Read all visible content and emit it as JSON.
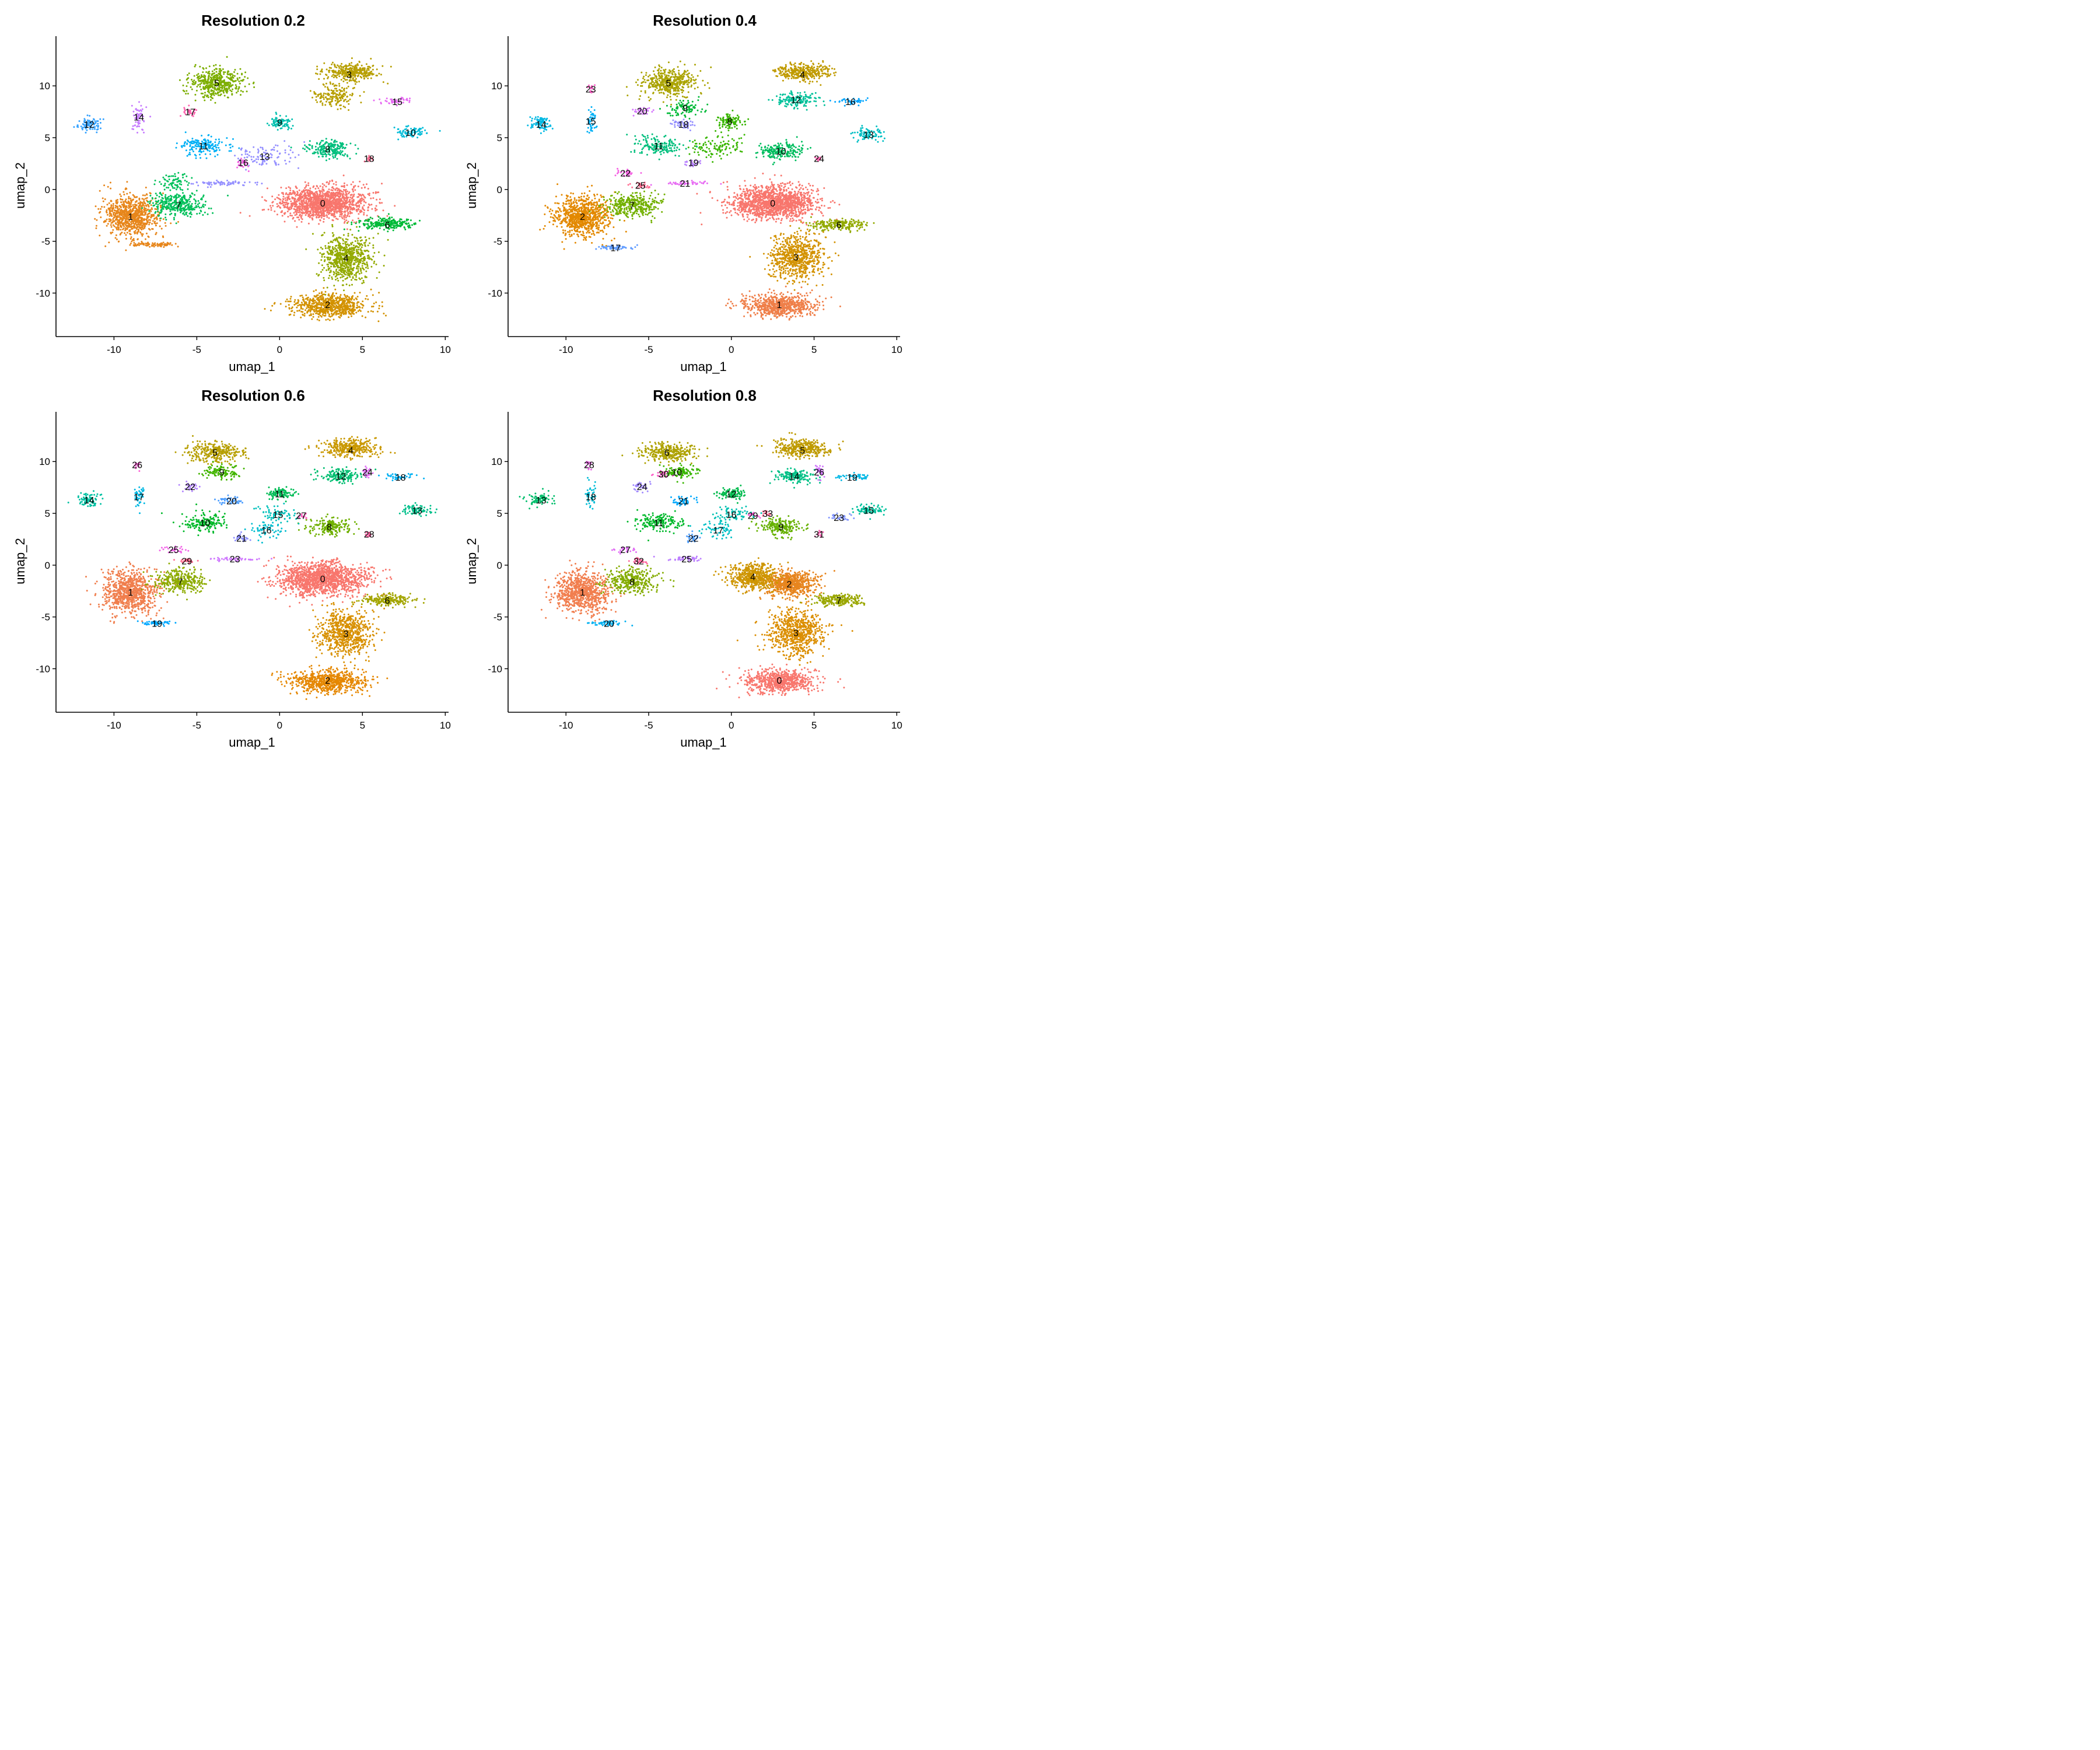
{
  "chart_data": [
    {
      "type": "scatter",
      "title": "Resolution 0.2",
      "xlabel": "umap_1",
      "ylabel": "umap_2",
      "xlim": [
        -13.5,
        10.2
      ],
      "ylim": [
        -14.2,
        14.8
      ],
      "xticks": [
        -10,
        -5,
        0,
        5,
        10
      ],
      "yticks": [
        -10,
        -5,
        0,
        5,
        10
      ],
      "grid": false,
      "legend": "none",
      "clusters": [
        {
          "label": "0",
          "x": 2.6,
          "y": -1.3,
          "color": "#F8766D"
        },
        {
          "label": "1",
          "x": -9.0,
          "y": -2.6,
          "color": "#E7861B"
        },
        {
          "label": "2",
          "x": 2.9,
          "y": -11.1,
          "color": "#D39200"
        },
        {
          "label": "3",
          "x": 4.2,
          "y": 11.1,
          "color": "#B79F00"
        },
        {
          "label": "4",
          "x": 4.0,
          "y": -6.6,
          "color": "#93AA00"
        },
        {
          "label": "5",
          "x": -3.8,
          "y": 10.3,
          "color": "#7CAE00"
        },
        {
          "label": "6",
          "x": 6.5,
          "y": -3.4,
          "color": "#00BA38"
        },
        {
          "label": "7",
          "x": -6.1,
          "y": -1.5,
          "color": "#00C05A"
        },
        {
          "label": "8",
          "x": 2.9,
          "y": 3.9,
          "color": "#00BF7D"
        },
        {
          "label": "9",
          "x": 0.0,
          "y": 6.5,
          "color": "#00C0AF"
        },
        {
          "label": "10",
          "x": 7.9,
          "y": 5.5,
          "color": "#00BCD8"
        },
        {
          "label": "11",
          "x": -4.6,
          "y": 4.2,
          "color": "#00B0F6"
        },
        {
          "label": "12",
          "x": -11.5,
          "y": 6.3,
          "color": "#35A2FF"
        },
        {
          "label": "13",
          "x": -0.9,
          "y": 3.2,
          "color": "#9590FF"
        },
        {
          "label": "14",
          "x": -8.5,
          "y": 7.0,
          "color": "#C77CFF"
        },
        {
          "label": "15",
          "x": 7.1,
          "y": 8.5,
          "color": "#E76BF3"
        },
        {
          "label": "16",
          "x": -2.2,
          "y": 2.6,
          "color": "#F564E3"
        },
        {
          "label": "17",
          "x": -5.4,
          "y": 7.5,
          "color": "#FF64B0"
        },
        {
          "label": "18",
          "x": 5.4,
          "y": 3.0,
          "color": "#FF6C91"
        }
      ]
    },
    {
      "type": "scatter",
      "title": "Resolution 0.4",
      "xlabel": "umap_1",
      "ylabel": "umap_2",
      "xlim": [
        -13.5,
        10.2
      ],
      "ylim": [
        -14.2,
        14.8
      ],
      "xticks": [
        -10,
        -5,
        0,
        5,
        10
      ],
      "yticks": [
        -10,
        -5,
        0,
        5,
        10
      ],
      "grid": false,
      "legend": "none",
      "clusters": [
        {
          "label": "0",
          "x": 2.5,
          "y": -1.3,
          "color": "#F8766D"
        },
        {
          "label": "1",
          "x": 2.9,
          "y": -11.1,
          "color": "#EF7F49"
        },
        {
          "label": "2",
          "x": -9.0,
          "y": -2.6,
          "color": "#E38900"
        },
        {
          "label": "3",
          "x": 3.9,
          "y": -6.5,
          "color": "#D39200"
        },
        {
          "label": "4",
          "x": 4.3,
          "y": 11.1,
          "color": "#C09B00"
        },
        {
          "label": "5",
          "x": -3.8,
          "y": 10.3,
          "color": "#AAA300"
        },
        {
          "label": "6",
          "x": 6.5,
          "y": -3.4,
          "color": "#93AA00"
        },
        {
          "label": "7",
          "x": -6.0,
          "y": -1.5,
          "color": "#72B000"
        },
        {
          "label": "8",
          "x": -0.1,
          "y": 6.6,
          "color": "#39B600"
        },
        {
          "label": "9",
          "x": -2.8,
          "y": 7.9,
          "color": "#00BA38"
        },
        {
          "label": "10",
          "x": 3.0,
          "y": 3.7,
          "color": "#00BD5F"
        },
        {
          "label": "11",
          "x": -4.4,
          "y": 4.2,
          "color": "#00BF7D"
        },
        {
          "label": "12",
          "x": 3.9,
          "y": 8.7,
          "color": "#00C19A"
        },
        {
          "label": "13",
          "x": 8.3,
          "y": 5.3,
          "color": "#00BFC4"
        },
        {
          "label": "14",
          "x": -11.5,
          "y": 6.3,
          "color": "#00B9E3"
        },
        {
          "label": "15",
          "x": -8.5,
          "y": 6.6,
          "color": "#00B0F6"
        },
        {
          "label": "16",
          "x": 7.2,
          "y": 8.5,
          "color": "#00A5FF"
        },
        {
          "label": "17",
          "x": -7.0,
          "y": -5.6,
          "color": "#619CFF"
        },
        {
          "label": "18",
          "x": -2.9,
          "y": 6.3,
          "color": "#9590FF"
        },
        {
          "label": "19",
          "x": -2.3,
          "y": 2.6,
          "color": "#B983FF"
        },
        {
          "label": "20",
          "x": -5.4,
          "y": 7.6,
          "color": "#D575FE"
        },
        {
          "label": "21",
          "x": -2.8,
          "y": 0.6,
          "color": "#E76BF3"
        },
        {
          "label": "22",
          "x": -6.4,
          "y": 1.6,
          "color": "#F564E3"
        },
        {
          "label": "23",
          "x": -8.5,
          "y": 9.7,
          "color": "#FF61C9"
        },
        {
          "label": "24",
          "x": 5.3,
          "y": 3.0,
          "color": "#FF64B0"
        },
        {
          "label": "25",
          "x": -5.5,
          "y": 0.4,
          "color": "#FF6C91"
        }
      ]
    },
    {
      "type": "scatter",
      "title": "Resolution 0.6",
      "xlabel": "umap_1",
      "ylabel": "umap_2",
      "xlim": [
        -13.5,
        10.2
      ],
      "ylim": [
        -14.2,
        14.8
      ],
      "xticks": [
        -10,
        -5,
        0,
        5,
        10
      ],
      "yticks": [
        -10,
        -5,
        0,
        5,
        10
      ],
      "grid": false,
      "legend": "none",
      "clusters": [
        {
          "label": "0",
          "x": 2.6,
          "y": -1.3,
          "color": "#F8766D"
        },
        {
          "label": "1",
          "x": -9.0,
          "y": -2.6,
          "color": "#F07E4D"
        },
        {
          "label": "2",
          "x": 2.9,
          "y": -11.1,
          "color": "#E58700"
        },
        {
          "label": "3",
          "x": 4.0,
          "y": -6.6,
          "color": "#D89000"
        },
        {
          "label": "4",
          "x": 4.3,
          "y": 11.1,
          "color": "#C99800"
        },
        {
          "label": "5",
          "x": -3.9,
          "y": 10.9,
          "color": "#B79F00"
        },
        {
          "label": "6",
          "x": 6.5,
          "y": -3.4,
          "color": "#A3A500"
        },
        {
          "label": "7",
          "x": -6.0,
          "y": -1.6,
          "color": "#8DAB00"
        },
        {
          "label": "8",
          "x": 3.0,
          "y": 3.7,
          "color": "#6FB000"
        },
        {
          "label": "9",
          "x": -3.5,
          "y": 9.0,
          "color": "#43B500"
        },
        {
          "label": "10",
          "x": -4.5,
          "y": 4.1,
          "color": "#00B92A"
        },
        {
          "label": "11",
          "x": 0.0,
          "y": 6.9,
          "color": "#00BC56"
        },
        {
          "label": "12",
          "x": 3.7,
          "y": 8.6,
          "color": "#00BE71"
        },
        {
          "label": "13",
          "x": 8.3,
          "y": 5.3,
          "color": "#00C08B"
        },
        {
          "label": "14",
          "x": -11.5,
          "y": 6.3,
          "color": "#00C1A3"
        },
        {
          "label": "15",
          "x": -0.1,
          "y": 4.9,
          "color": "#00C0BB"
        },
        {
          "label": "16",
          "x": -0.8,
          "y": 3.4,
          "color": "#00BDD0"
        },
        {
          "label": "17",
          "x": -8.5,
          "y": 6.6,
          "color": "#00B8E3"
        },
        {
          "label": "18",
          "x": 7.3,
          "y": 8.5,
          "color": "#00B1F3"
        },
        {
          "label": "19",
          "x": -7.4,
          "y": -5.6,
          "color": "#00A8FF"
        },
        {
          "label": "20",
          "x": -2.9,
          "y": 6.2,
          "color": "#4D9EFF"
        },
        {
          "label": "21",
          "x": -2.3,
          "y": 2.6,
          "color": "#8F91FF"
        },
        {
          "label": "22",
          "x": -5.4,
          "y": 7.6,
          "color": "#B385FF"
        },
        {
          "label": "23",
          "x": -2.7,
          "y": 0.6,
          "color": "#CF78FF"
        },
        {
          "label": "24",
          "x": 5.3,
          "y": 9.0,
          "color": "#E36EF6"
        },
        {
          "label": "25",
          "x": -6.4,
          "y": 1.5,
          "color": "#F266E8"
        },
        {
          "label": "26",
          "x": -8.6,
          "y": 9.7,
          "color": "#FC61D5"
        },
        {
          "label": "27",
          "x": 1.3,
          "y": 4.8,
          "color": "#FF62BF"
        },
        {
          "label": "28",
          "x": 5.4,
          "y": 3.0,
          "color": "#FF67A6"
        },
        {
          "label": "29",
          "x": -5.6,
          "y": 0.4,
          "color": "#FF6C91"
        }
      ]
    },
    {
      "type": "scatter",
      "title": "Resolution 0.8",
      "xlabel": "umap_1",
      "ylabel": "umap_2",
      "xlim": [
        -13.5,
        10.2
      ],
      "ylim": [
        -14.2,
        14.8
      ],
      "xticks": [
        -10,
        -5,
        0,
        5,
        10
      ],
      "yticks": [
        -10,
        -5,
        0,
        5,
        10
      ],
      "grid": false,
      "legend": "none",
      "clusters": [
        {
          "label": "0",
          "x": 2.9,
          "y": -11.1,
          "color": "#F8766D"
        },
        {
          "label": "1",
          "x": -9.0,
          "y": -2.6,
          "color": "#F17E4E"
        },
        {
          "label": "2",
          "x": 3.5,
          "y": -1.8,
          "color": "#E7851E"
        },
        {
          "label": "3",
          "x": 3.9,
          "y": -6.5,
          "color": "#DB8E00"
        },
        {
          "label": "4",
          "x": 1.3,
          "y": -1.1,
          "color": "#CE9500"
        },
        {
          "label": "5",
          "x": 4.3,
          "y": 11.1,
          "color": "#BF9B00"
        },
        {
          "label": "6",
          "x": -3.9,
          "y": 10.9,
          "color": "#AEA200"
        },
        {
          "label": "7",
          "x": 6.5,
          "y": -3.4,
          "color": "#9AA700"
        },
        {
          "label": "8",
          "x": -6.0,
          "y": -1.6,
          "color": "#84AC00"
        },
        {
          "label": "9",
          "x": 3.0,
          "y": 3.7,
          "color": "#66B100"
        },
        {
          "label": "10",
          "x": -3.3,
          "y": 9.0,
          "color": "#39B600"
        },
        {
          "label": "11",
          "x": -4.4,
          "y": 4.1,
          "color": "#00B92B"
        },
        {
          "label": "12",
          "x": 0.0,
          "y": 6.9,
          "color": "#00BB4E"
        },
        {
          "label": "13",
          "x": -11.5,
          "y": 6.3,
          "color": "#00BE6C"
        },
        {
          "label": "14",
          "x": 3.8,
          "y": 8.6,
          "color": "#00C086"
        },
        {
          "label": "15",
          "x": 8.3,
          "y": 5.3,
          "color": "#00C19D"
        },
        {
          "label": "16",
          "x": 0.0,
          "y": 4.9,
          "color": "#00C1B2"
        },
        {
          "label": "17",
          "x": -0.8,
          "y": 3.4,
          "color": "#00BFC5"
        },
        {
          "label": "18",
          "x": -8.5,
          "y": 6.6,
          "color": "#00BCD6"
        },
        {
          "label": "19",
          "x": 7.3,
          "y": 8.5,
          "color": "#00B7E5"
        },
        {
          "label": "20",
          "x": -7.4,
          "y": -5.6,
          "color": "#00B0F1"
        },
        {
          "label": "21",
          "x": -2.9,
          "y": 6.2,
          "color": "#00A8FC"
        },
        {
          "label": "22",
          "x": -2.3,
          "y": 2.6,
          "color": "#509FFF"
        },
        {
          "label": "23",
          "x": 6.5,
          "y": 4.6,
          "color": "#8195FF"
        },
        {
          "label": "24",
          "x": -5.4,
          "y": 7.6,
          "color": "#A28AFF"
        },
        {
          "label": "25",
          "x": -2.7,
          "y": 0.6,
          "color": "#BC7FFF"
        },
        {
          "label": "26",
          "x": 5.3,
          "y": 9.0,
          "color": "#D176FC"
        },
        {
          "label": "27",
          "x": -6.4,
          "y": 1.5,
          "color": "#E16EF4"
        },
        {
          "label": "28",
          "x": -8.6,
          "y": 9.7,
          "color": "#EE67E9"
        },
        {
          "label": "29",
          "x": 1.3,
          "y": 4.8,
          "color": "#F863DB"
        },
        {
          "label": "30",
          "x": -4.1,
          "y": 8.8,
          "color": "#FE61C9"
        },
        {
          "label": "31",
          "x": 5.3,
          "y": 3.0,
          "color": "#FF64B4"
        },
        {
          "label": "32",
          "x": -5.6,
          "y": 0.4,
          "color": "#FF689F"
        },
        {
          "label": "33",
          "x": 2.2,
          "y": 5.0,
          "color": "#FF6C91"
        }
      ]
    }
  ]
}
